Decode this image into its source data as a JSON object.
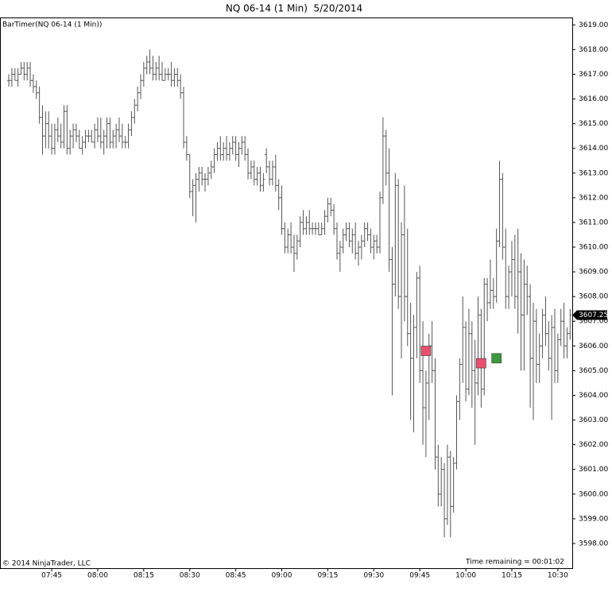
{
  "chart_data": {
    "type": "ohlc",
    "title": "NQ 06-14 (1 Min)  5/20/2014",
    "indicator_label": "BarTimer(NQ 06-14 (1 Min))",
    "copyright": "© 2014 NinjaTrader, LLC",
    "time_remaining": "Time remaining = 00:01:02",
    "last_price": 3607.25,
    "color": "#555555",
    "xlim": [
      448.4,
      634.7
    ],
    "ylim": [
      3597,
      3619.3
    ],
    "xticks": [
      {
        "value": 465,
        "label": "07:45"
      },
      {
        "value": 480,
        "label": "08:00"
      },
      {
        "value": 495,
        "label": "08:15"
      },
      {
        "value": 510,
        "label": "08:30"
      },
      {
        "value": 525,
        "label": "08:45"
      },
      {
        "value": 540,
        "label": "09:00"
      },
      {
        "value": 555,
        "label": "09:15"
      },
      {
        "value": 570,
        "label": "09:30"
      },
      {
        "value": 585,
        "label": "09:45"
      },
      {
        "value": 600,
        "label": "10:00"
      },
      {
        "value": 615,
        "label": "10:15"
      },
      {
        "value": 630,
        "label": "10:30"
      }
    ],
    "yticks": [
      {
        "value": 3598,
        "label": "3598.00"
      },
      {
        "value": 3599,
        "label": "3599.00"
      },
      {
        "value": 3600,
        "label": "3600.00"
      },
      {
        "value": 3601,
        "label": "3601.00"
      },
      {
        "value": 3602,
        "label": "3602.00"
      },
      {
        "value": 3603,
        "label": "3603.00"
      },
      {
        "value": 3604,
        "label": "3604.00"
      },
      {
        "value": 3605,
        "label": "3605.00"
      },
      {
        "value": 3606,
        "label": "3606.00"
      },
      {
        "value": 3607,
        "label": "3607.00"
      },
      {
        "value": 3608,
        "label": "3608.00"
      },
      {
        "value": 3609,
        "label": "3609.00"
      },
      {
        "value": 3610,
        "label": "3610.00"
      },
      {
        "value": 3611,
        "label": "3611.00"
      },
      {
        "value": 3612,
        "label": "3612.00"
      },
      {
        "value": 3613,
        "label": "3613.00"
      },
      {
        "value": 3614,
        "label": "3614.00"
      },
      {
        "value": 3615,
        "label": "3615.00"
      },
      {
        "value": 3616,
        "label": "3616.00"
      },
      {
        "value": 3617,
        "label": "3617.00"
      },
      {
        "value": 3618,
        "label": "3618.00"
      },
      {
        "value": 3619,
        "label": "3619.00"
      }
    ],
    "x": [
      451,
      452,
      453,
      454,
      455,
      456,
      457,
      458,
      459,
      460,
      461,
      462,
      463,
      464,
      465,
      466,
      467,
      468,
      469,
      470,
      471,
      472,
      473,
      474,
      475,
      476,
      477,
      478,
      479,
      480,
      481,
      482,
      483,
      484,
      485,
      486,
      487,
      488,
      489,
      490,
      491,
      492,
      493,
      494,
      495,
      496,
      497,
      498,
      499,
      500,
      501,
      502,
      503,
      504,
      505,
      506,
      507,
      508,
      509,
      510,
      511,
      512,
      513,
      514,
      515,
      516,
      517,
      518,
      519,
      520,
      521,
      522,
      523,
      524,
      525,
      526,
      527,
      528,
      529,
      530,
      531,
      532,
      533,
      534,
      535,
      536,
      537,
      538,
      539,
      540,
      541,
      542,
      543,
      544,
      545,
      546,
      547,
      548,
      549,
      550,
      551,
      552,
      553,
      554,
      555,
      556,
      557,
      558,
      559,
      560,
      561,
      562,
      563,
      564,
      565,
      566,
      567,
      568,
      569,
      570,
      571,
      572,
      573,
      574,
      575,
      576,
      577,
      578,
      579,
      580,
      581,
      582,
      583,
      584,
      585,
      586,
      587,
      588,
      589,
      590,
      591,
      592,
      593,
      594,
      595,
      596,
      597,
      598,
      599,
      600,
      601,
      602,
      603,
      604,
      605,
      606,
      607,
      608,
      609,
      610,
      611,
      612,
      613,
      614,
      615,
      616,
      617,
      618,
      619,
      620,
      621,
      622,
      623,
      624,
      625,
      626,
      627,
      628,
      629,
      630,
      631,
      632,
      633,
      634
    ],
    "ohlc": [
      [
        3616.75,
        3617,
        3616.5,
        3616.75
      ],
      [
        3616.75,
        3617.25,
        3616.5,
        3617
      ],
      [
        3617,
        3617.25,
        3616.75,
        3616.75
      ],
      [
        3616.75,
        3617.25,
        3616.5,
        3617
      ],
      [
        3617,
        3617.5,
        3617,
        3617.25
      ],
      [
        3617.25,
        3617.5,
        3616.75,
        3617
      ],
      [
        3617,
        3617.5,
        3616.75,
        3617.25
      ],
      [
        3617.25,
        3617.5,
        3616.5,
        3616.75
      ],
      [
        3616.75,
        3617,
        3616.25,
        3616.5
      ],
      [
        3616.5,
        3616.75,
        3616,
        3616.25
      ],
      [
        3616.25,
        3616.5,
        3615,
        3615.25
      ],
      [
        3615.25,
        3615.75,
        3613.75,
        3614.5
      ],
      [
        3614.5,
        3615.5,
        3614,
        3615
      ],
      [
        3615,
        3615.5,
        3614,
        3614.5
      ],
      [
        3614.5,
        3615,
        3613.75,
        3614
      ],
      [
        3614,
        3615,
        3613.75,
        3614.75
      ],
      [
        3614.75,
        3615.25,
        3614.25,
        3614.5
      ],
      [
        3614.5,
        3615,
        3614,
        3614.25
      ],
      [
        3614.25,
        3615.75,
        3614,
        3615.5
      ],
      [
        3615.5,
        3615.75,
        3613.75,
        3614
      ],
      [
        3614,
        3614.75,
        3613.75,
        3614.5
      ],
      [
        3614.5,
        3615,
        3614,
        3614.75
      ],
      [
        3614.75,
        3615,
        3614.25,
        3614.5
      ],
      [
        3614.5,
        3614.75,
        3614,
        3614
      ],
      [
        3614,
        3614.5,
        3613.75,
        3614.25
      ],
      [
        3614.25,
        3614.75,
        3614,
        3614.5
      ],
      [
        3614.5,
        3614.75,
        3614.25,
        3614.5
      ],
      [
        3614.5,
        3614.75,
        3614.25,
        3614.25
      ],
      [
        3614.25,
        3615,
        3614,
        3614.75
      ],
      [
        3614.75,
        3615.25,
        3614.25,
        3614.5
      ],
      [
        3614.5,
        3615.25,
        3614,
        3614.25
      ],
      [
        3614.25,
        3614.75,
        3613.75,
        3614.5
      ],
      [
        3614.5,
        3615.25,
        3614,
        3615
      ],
      [
        3615,
        3615.25,
        3614,
        3614.25
      ],
      [
        3614.25,
        3614.75,
        3614,
        3614.5
      ],
      [
        3614.5,
        3615,
        3614,
        3614.75
      ],
      [
        3614.75,
        3615.25,
        3614.25,
        3614.5
      ],
      [
        3614.5,
        3615,
        3614,
        3614.25
      ],
      [
        3614.25,
        3614.5,
        3614,
        3614.25
      ],
      [
        3614.25,
        3615,
        3614,
        3614.75
      ],
      [
        3614.75,
        3615.5,
        3614.5,
        3615.25
      ],
      [
        3615.25,
        3616,
        3615,
        3615.75
      ],
      [
        3615.75,
        3616.5,
        3615.5,
        3616.25
      ],
      [
        3616.25,
        3617,
        3616,
        3616.75
      ],
      [
        3616.75,
        3617.5,
        3616.5,
        3617.25
      ],
      [
        3617.25,
        3617.75,
        3617,
        3617.5
      ],
      [
        3617.5,
        3618,
        3617,
        3617.25
      ],
      [
        3617.25,
        3617.75,
        3616.75,
        3617
      ],
      [
        3617,
        3617.5,
        3616.75,
        3617.25
      ],
      [
        3617.25,
        3617.75,
        3616.75,
        3617
      ],
      [
        3617,
        3617.5,
        3616.75,
        3616.75
      ],
      [
        3616.75,
        3617.25,
        3616.75,
        3617
      ],
      [
        3617,
        3617.25,
        3616.75,
        3617
      ],
      [
        3617,
        3617.5,
        3616.5,
        3616.75
      ],
      [
        3616.75,
        3617.25,
        3616.5,
        3617
      ],
      [
        3617,
        3617.25,
        3616.5,
        3616.75
      ],
      [
        3616.75,
        3617,
        3616,
        3616.25
      ],
      [
        3616.25,
        3616.5,
        3614,
        3614.25
      ],
      [
        3614.25,
        3614.5,
        3613.5,
        3613.75
      ],
      [
        3613.75,
        3613.75,
        3612,
        3612.25
      ],
      [
        3612.25,
        3612.75,
        3611.25,
        3612.5
      ],
      [
        3612.5,
        3613,
        3611,
        3612.75
      ],
      [
        3612.75,
        3613.25,
        3612.25,
        3613
      ],
      [
        3613,
        3613.25,
        3612.5,
        3612.75
      ],
      [
        3612.75,
        3613,
        3612.25,
        3612.75
      ],
      [
        3612.75,
        3613.25,
        3612.5,
        3613
      ],
      [
        3613,
        3613.5,
        3612.75,
        3613.25
      ],
      [
        3613.25,
        3614,
        3613,
        3613.75
      ],
      [
        3613.75,
        3614.25,
        3613.5,
        3614
      ],
      [
        3614,
        3614.5,
        3613.5,
        3613.75
      ],
      [
        3613.75,
        3614.25,
        3613.5,
        3614
      ],
      [
        3614,
        3614.5,
        3613.5,
        3613.75
      ],
      [
        3613.75,
        3614.25,
        3613.5,
        3614
      ],
      [
        3614,
        3614.5,
        3613.75,
        3614.25
      ],
      [
        3614.25,
        3614.5,
        3613.5,
        3613.75
      ],
      [
        3613.75,
        3614.25,
        3613.25,
        3614
      ],
      [
        3614,
        3614.5,
        3613.75,
        3614.25
      ],
      [
        3614.25,
        3614.5,
        3613.5,
        3613.75
      ],
      [
        3613.75,
        3614,
        3612.75,
        3613
      ],
      [
        3613,
        3613.5,
        3612.75,
        3613.25
      ],
      [
        3613.25,
        3613.5,
        3612.5,
        3612.75
      ],
      [
        3612.75,
        3613.25,
        3612.5,
        3613
      ],
      [
        3613,
        3613.25,
        3612.25,
        3612.5
      ],
      [
        3612.5,
        3613,
        3612.25,
        3612.75
      ],
      [
        3613.75,
        3614,
        3613,
        3613.25
      ],
      [
        3613.25,
        3613.5,
        3612.5,
        3612.75
      ],
      [
        3612.75,
        3613.5,
        3612.5,
        3613.25
      ],
      [
        3613.25,
        3613.75,
        3612.25,
        3612.5
      ],
      [
        3612.5,
        3612.75,
        3611.5,
        3612
      ],
      [
        3612,
        3612.5,
        3610.5,
        3610.75
      ],
      [
        3610.75,
        3611,
        3609.75,
        3610
      ],
      [
        3610,
        3610.75,
        3609.75,
        3610.5
      ],
      [
        3610.5,
        3611,
        3609.75,
        3610
      ],
      [
        3610,
        3610.5,
        3609,
        3609.75
      ],
      [
        3609.75,
        3610.5,
        3609.5,
        3610.25
      ],
      [
        3610.25,
        3611.25,
        3610,
        3611
      ],
      [
        3611,
        3611.5,
        3610.5,
        3610.75
      ],
      [
        3610.75,
        3611.25,
        3610.5,
        3611
      ],
      [
        3611,
        3611.5,
        3610.5,
        3610.75
      ],
      [
        3610.75,
        3611,
        3610.5,
        3610.75
      ],
      [
        3610.75,
        3611,
        3610.5,
        3610.75
      ],
      [
        3610.75,
        3611,
        3610.5,
        3610.5
      ],
      [
        3610.5,
        3611,
        3610.5,
        3610.75
      ],
      [
        3610.75,
        3611.5,
        3610.5,
        3611.25
      ],
      [
        3611.25,
        3612,
        3611,
        3611.75
      ],
      [
        3611.75,
        3612,
        3611.25,
        3611.5
      ],
      [
        3611.5,
        3611.75,
        3610.5,
        3610.75
      ],
      [
        3610.75,
        3611,
        3609.5,
        3609.75
      ],
      [
        3609.75,
        3610.25,
        3609,
        3610
      ],
      [
        3610,
        3610.75,
        3609.75,
        3610.5
      ],
      [
        3610.5,
        3611,
        3610.25,
        3610.75
      ],
      [
        3610.75,
        3611,
        3610,
        3610.25
      ],
      [
        3610.25,
        3610.75,
        3609.75,
        3610.5
      ],
      [
        3610.5,
        3611,
        3609.5,
        3609.75
      ],
      [
        3609.75,
        3610.25,
        3609.25,
        3610
      ],
      [
        3610,
        3610.5,
        3609.5,
        3610.25
      ],
      [
        3610.25,
        3611,
        3610,
        3610.75
      ],
      [
        3610.75,
        3611,
        3610.25,
        3610.5
      ],
      [
        3610.5,
        3610.75,
        3609.75,
        3610
      ],
      [
        3610,
        3610.5,
        3609.5,
        3610.25
      ],
      [
        3610.25,
        3610.5,
        3609.75,
        3610
      ],
      [
        3610,
        3612.25,
        3609.75,
        3612
      ],
      [
        3612,
        3615.25,
        3611.75,
        3614.5
      ],
      [
        3614.5,
        3614.75,
        3612.5,
        3613
      ],
      [
        3613,
        3614,
        3609,
        3609.5
      ],
      [
        3609.5,
        3610,
        3604,
        3608.5
      ],
      [
        3608.5,
        3613,
        3608,
        3612.5
      ],
      [
        3612.5,
        3612.75,
        3607.5,
        3608
      ],
      [
        3608,
        3611,
        3605.5,
        3610.5
      ],
      [
        3610.5,
        3612.5,
        3607,
        3608
      ],
      [
        3608,
        3610.75,
        3606,
        3606.5
      ],
      [
        3606.5,
        3607.75,
        3603,
        3605.5
      ],
      [
        3605.5,
        3607.25,
        3602.5,
        3606.75
      ],
      [
        3606.75,
        3609,
        3605.5,
        3608.75
      ],
      [
        3608.75,
        3609.25,
        3604.5,
        3605
      ],
      [
        3605,
        3607,
        3602,
        3603.5
      ],
      [
        3603.5,
        3605,
        3601.5,
        3604.5
      ],
      [
        3604.5,
        3606.5,
        3603,
        3606
      ],
      [
        3606,
        3607,
        3604.5,
        3605
      ],
      [
        3605,
        3605.5,
        3601,
        3601.5
      ],
      [
        3601.5,
        3602,
        3599.5,
        3600
      ],
      [
        3600,
        3601.5,
        3599.5,
        3601
      ],
      [
        3601,
        3601.25,
        3598.25,
        3599
      ],
      [
        3599,
        3602,
        3598.75,
        3601.5
      ],
      [
        3601.5,
        3601.75,
        3598.25,
        3599.5
      ],
      [
        3599.5,
        3601.5,
        3599.25,
        3601.25
      ],
      [
        3601.25,
        3604,
        3601,
        3603.75
      ],
      [
        3603.75,
        3605.5,
        3603,
        3605.25
      ],
      [
        3605.25,
        3608,
        3604.5,
        3606.75
      ],
      [
        3606.75,
        3607,
        3603.75,
        3604.25
      ],
      [
        3604.25,
        3607.5,
        3604,
        3606.5
      ],
      [
        3606.5,
        3607,
        3603.5,
        3605
      ],
      [
        3605,
        3606.25,
        3602,
        3604.5
      ],
      [
        3604.5,
        3608,
        3604,
        3607.25
      ],
      [
        3607.25,
        3607.5,
        3603.5,
        3604.25
      ],
      [
        3604.25,
        3608.75,
        3604,
        3608.5
      ],
      [
        3608.5,
        3608.75,
        3607,
        3607.75
      ],
      [
        3607.75,
        3609.5,
        3607.5,
        3608.25
      ],
      [
        3608.25,
        3608.75,
        3607.5,
        3608
      ],
      [
        3608,
        3610.75,
        3607.75,
        3610.25
      ],
      [
        3610.25,
        3613.5,
        3610,
        3612.75
      ],
      [
        3612.75,
        3613,
        3609.5,
        3610
      ],
      [
        3610,
        3610.75,
        3607.5,
        3608
      ],
      [
        3608,
        3609.25,
        3607.5,
        3609
      ],
      [
        3609,
        3610.25,
        3608,
        3609.5
      ],
      [
        3609.5,
        3610.5,
        3607.5,
        3608
      ],
      [
        3608,
        3610.75,
        3606.5,
        3609
      ],
      [
        3609,
        3609.75,
        3605,
        3607.25
      ],
      [
        3607.25,
        3609.5,
        3605,
        3608.5
      ],
      [
        3608.5,
        3609.25,
        3607.25,
        3608
      ],
      [
        3608,
        3608.5,
        3603.5,
        3605.5
      ],
      [
        3605.5,
        3607.75,
        3603,
        3607
      ],
      [
        3607,
        3607.5,
        3604.5,
        3605.25
      ],
      [
        3605.25,
        3606.5,
        3604.5,
        3606
      ],
      [
        3606,
        3607.5,
        3605.5,
        3607.25
      ],
      [
        3607.25,
        3608,
        3606,
        3606.5
      ],
      [
        3606.5,
        3607,
        3605,
        3605.5
      ],
      [
        3605.5,
        3607.25,
        3603,
        3606.75
      ],
      [
        3606.75,
        3607.5,
        3604.5,
        3605
      ],
      [
        3605,
        3606.5,
        3604.5,
        3606.25
      ],
      [
        3606.25,
        3607.5,
        3606,
        3607
      ],
      [
        3607,
        3607.75,
        3605.5,
        3606
      ],
      [
        3606,
        3606.75,
        3605.5,
        3606.5
      ],
      [
        3606.5,
        3607.5,
        3606.25,
        3607.25
      ]
    ],
    "markers": [
      {
        "x": 587,
        "y": 3605.8,
        "color": "#e8506e"
      },
      {
        "x": 605,
        "y": 3605.3,
        "color": "#e8506e"
      },
      {
        "x": 610,
        "y": 3605.5,
        "color": "#3f9a3f"
      }
    ]
  }
}
